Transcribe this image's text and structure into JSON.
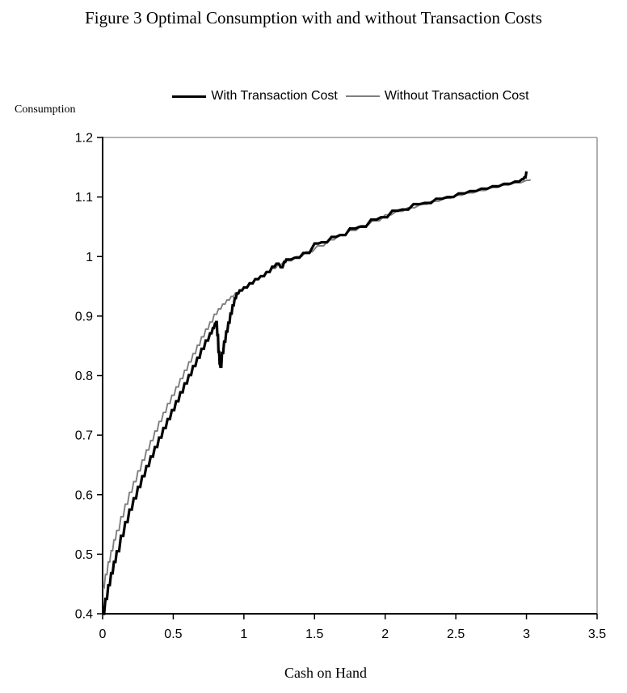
{
  "figure_title": "Figure 3 Optimal Consumption with and without Transaction Costs",
  "chart_data": {
    "type": "line",
    "title": "Figure 3 Optimal Consumption with and without Transaction Costs",
    "xlabel": "Cash on Hand",
    "ylabel": "Consumption",
    "xlim": [
      0,
      3.5
    ],
    "ylim": [
      0.4,
      1.2
    ],
    "grid": false,
    "legend_position": "top-center",
    "frame_color": "#9c9c9c",
    "axis_color": "#000000",
    "x_ticks": {
      "values": [
        0,
        0.5,
        1,
        1.5,
        2,
        2.5,
        3,
        3.5
      ],
      "labels": [
        "0",
        "0.5",
        "1",
        "1.5",
        "2",
        "2.5",
        "3",
        "3.5"
      ]
    },
    "y_ticks": {
      "values": [
        0.4,
        0.5,
        0.6,
        0.7,
        0.8,
        0.9,
        1,
        1.1,
        1.2
      ],
      "labels": [
        "0.4",
        "0.5",
        "0.6",
        "0.7",
        "0.8",
        "0.9",
        "1",
        "1.1",
        "1.2"
      ]
    },
    "series": [
      {
        "name": "With Transaction Cost",
        "color": "#000000",
        "stroke_width": 3.2,
        "points": [
          [
            0.0,
            0.4
          ],
          [
            0.02,
            0.425
          ],
          [
            0.04,
            0.448
          ],
          [
            0.06,
            0.468
          ],
          [
            0.08,
            0.487
          ],
          [
            0.1,
            0.505
          ],
          [
            0.13,
            0.531
          ],
          [
            0.16,
            0.554
          ],
          [
            0.19,
            0.575
          ],
          [
            0.22,
            0.594
          ],
          [
            0.25,
            0.613
          ],
          [
            0.28,
            0.631
          ],
          [
            0.31,
            0.648
          ],
          [
            0.34,
            0.664
          ],
          [
            0.37,
            0.68
          ],
          [
            0.4,
            0.696
          ],
          [
            0.43,
            0.712
          ],
          [
            0.46,
            0.727
          ],
          [
            0.49,
            0.742
          ],
          [
            0.52,
            0.757
          ],
          [
            0.55,
            0.772
          ],
          [
            0.58,
            0.787
          ],
          [
            0.61,
            0.801
          ],
          [
            0.64,
            0.816
          ],
          [
            0.67,
            0.83
          ],
          [
            0.7,
            0.845
          ],
          [
            0.73,
            0.859
          ],
          [
            0.76,
            0.871
          ],
          [
            0.78,
            0.88
          ],
          [
            0.795,
            0.887
          ],
          [
            0.803,
            0.89
          ],
          [
            0.812,
            0.868
          ],
          [
            0.82,
            0.84
          ],
          [
            0.828,
            0.82
          ],
          [
            0.834,
            0.815
          ],
          [
            0.845,
            0.838
          ],
          [
            0.86,
            0.857
          ],
          [
            0.875,
            0.874
          ],
          [
            0.89,
            0.889
          ],
          [
            0.905,
            0.904
          ],
          [
            0.92,
            0.918
          ],
          [
            0.935,
            0.93
          ],
          [
            0.95,
            0.938
          ],
          [
            0.97,
            0.943
          ],
          [
            1.0,
            0.948
          ],
          [
            1.04,
            0.955
          ],
          [
            1.08,
            0.962
          ],
          [
            1.12,
            0.967
          ],
          [
            1.16,
            0.974
          ],
          [
            1.2,
            0.983
          ],
          [
            1.23,
            0.988
          ],
          [
            1.26,
            0.982
          ],
          [
            1.285,
            0.991
          ],
          [
            1.3,
            0.995
          ],
          [
            1.36,
            0.998
          ],
          [
            1.42,
            1.006
          ],
          [
            1.5,
            1.022
          ],
          [
            1.55,
            1.024
          ],
          [
            1.62,
            1.033
          ],
          [
            1.68,
            1.036
          ],
          [
            1.75,
            1.047
          ],
          [
            1.82,
            1.05
          ],
          [
            1.9,
            1.062
          ],
          [
            1.97,
            1.066
          ],
          [
            2.05,
            1.077
          ],
          [
            2.12,
            1.079
          ],
          [
            2.2,
            1.088
          ],
          [
            2.28,
            1.09
          ],
          [
            2.36,
            1.097
          ],
          [
            2.44,
            1.1
          ],
          [
            2.52,
            1.106
          ],
          [
            2.6,
            1.11
          ],
          [
            2.68,
            1.114
          ],
          [
            2.76,
            1.118
          ],
          [
            2.84,
            1.122
          ],
          [
            2.92,
            1.126
          ],
          [
            2.97,
            1.13
          ],
          [
            2.985,
            1.133
          ],
          [
            3.0,
            1.143
          ]
        ]
      },
      {
        "name": "Without Transaction Cost",
        "color": "#7f7f7f",
        "stroke_width": 1.9,
        "points": [
          [
            0.0,
            0.443
          ],
          [
            0.02,
            0.466
          ],
          [
            0.04,
            0.487
          ],
          [
            0.06,
            0.506
          ],
          [
            0.08,
            0.524
          ],
          [
            0.1,
            0.54
          ],
          [
            0.13,
            0.563
          ],
          [
            0.16,
            0.584
          ],
          [
            0.19,
            0.604
          ],
          [
            0.22,
            0.622
          ],
          [
            0.25,
            0.64
          ],
          [
            0.28,
            0.658
          ],
          [
            0.31,
            0.675
          ],
          [
            0.34,
            0.691
          ],
          [
            0.37,
            0.707
          ],
          [
            0.4,
            0.723
          ],
          [
            0.43,
            0.738
          ],
          [
            0.46,
            0.753
          ],
          [
            0.49,
            0.767
          ],
          [
            0.52,
            0.781
          ],
          [
            0.55,
            0.795
          ],
          [
            0.58,
            0.809
          ],
          [
            0.61,
            0.823
          ],
          [
            0.64,
            0.837
          ],
          [
            0.67,
            0.851
          ],
          [
            0.7,
            0.865
          ],
          [
            0.73,
            0.878
          ],
          [
            0.76,
            0.89
          ],
          [
            0.79,
            0.903
          ],
          [
            0.82,
            0.912
          ],
          [
            0.85,
            0.92
          ],
          [
            0.88,
            0.927
          ],
          [
            0.91,
            0.933
          ],
          [
            0.94,
            0.939
          ],
          [
            0.97,
            0.944
          ],
          [
            1.0,
            0.948
          ],
          [
            1.04,
            0.954
          ],
          [
            1.08,
            0.961
          ],
          [
            1.12,
            0.967
          ],
          [
            1.16,
            0.973
          ],
          [
            1.2,
            0.98
          ],
          [
            1.24,
            0.986
          ],
          [
            1.28,
            0.991
          ],
          [
            1.3,
            0.993
          ],
          [
            1.37,
            1.0
          ],
          [
            1.44,
            1.008
          ],
          [
            1.52,
            1.018
          ],
          [
            1.6,
            1.028
          ],
          [
            1.67,
            1.036
          ],
          [
            1.75,
            1.044
          ],
          [
            1.83,
            1.052
          ],
          [
            1.91,
            1.06
          ],
          [
            2.0,
            1.07
          ],
          [
            2.08,
            1.076
          ],
          [
            2.16,
            1.082
          ],
          [
            2.25,
            1.088
          ],
          [
            2.33,
            1.093
          ],
          [
            2.42,
            1.098
          ],
          [
            2.5,
            1.103
          ],
          [
            2.58,
            1.107
          ],
          [
            2.66,
            1.111
          ],
          [
            2.75,
            1.116
          ],
          [
            2.83,
            1.12
          ],
          [
            2.91,
            1.124
          ],
          [
            3.0,
            1.128
          ],
          [
            3.03,
            1.129
          ]
        ]
      }
    ]
  }
}
